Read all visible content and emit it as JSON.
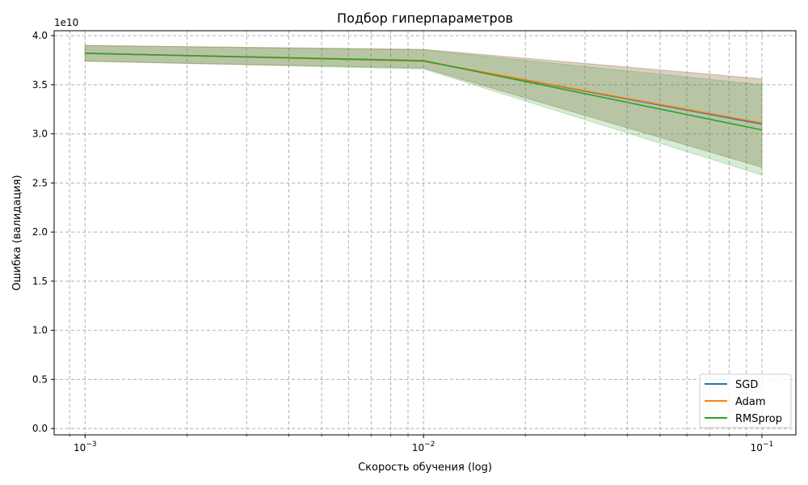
{
  "chart_data": {
    "type": "line",
    "title": "Подбор гиперпараметров",
    "xlabel": "Скорость обучения (log)",
    "ylabel": "Ошибка (валидация)",
    "x_scale": "log",
    "xlim": [
      0.00081,
      0.126
    ],
    "ylim": [
      -650000000.0,
      40500000000.0
    ],
    "y_offset_label": "1e10",
    "x_ticks": [
      {
        "value": 0.001,
        "base": "10",
        "exp": "−3"
      },
      {
        "value": 0.01,
        "base": "10",
        "exp": "−2"
      },
      {
        "value": 0.1,
        "base": "10",
        "exp": "−1"
      }
    ],
    "y_ticks": [
      {
        "value": 0,
        "label": "0.0"
      },
      {
        "value": 5000000000.0,
        "label": "0.5"
      },
      {
        "value": 10000000000.0,
        "label": "1.0"
      },
      {
        "value": 15000000000.0,
        "label": "1.5"
      },
      {
        "value": 20000000000.0,
        "label": "2.0"
      },
      {
        "value": 25000000000.0,
        "label": "2.5"
      },
      {
        "value": 30000000000.0,
        "label": "3.0"
      },
      {
        "value": 35000000000.0,
        "label": "3.5"
      },
      {
        "value": 40000000000.0,
        "label": "4.0"
      }
    ],
    "grid": true,
    "grid_style": "dashed",
    "legend_position": "bottom-right",
    "x": [
      0.001,
      0.01,
      0.1
    ],
    "series": [
      {
        "name": "SGD",
        "color": "#1f77b4",
        "values": [
          38200000000.0,
          37400000000.0,
          31000000000.0
        ],
        "lower": [
          37400000000.0,
          36700000000.0,
          26600000000.0
        ],
        "upper": [
          39000000000.0,
          38600000000.0,
          35600000000.0
        ]
      },
      {
        "name": "Adam",
        "color": "#ff7f0e",
        "values": [
          38200000000.0,
          37400000000.0,
          31100000000.0
        ],
        "lower": [
          37400000000.0,
          36700000000.0,
          26600000000.0
        ],
        "upper": [
          39000000000.0,
          38600000000.0,
          35600000000.0
        ]
      },
      {
        "name": "RMSprop",
        "color": "#2ca02c",
        "values": [
          38200000000.0,
          37450000000.0,
          30400000000.0
        ],
        "lower": [
          37400000000.0,
          36600000000.0,
          25800000000.0
        ],
        "upper": [
          39000000000.0,
          38550000000.0,
          35000000000.0
        ]
      }
    ]
  }
}
